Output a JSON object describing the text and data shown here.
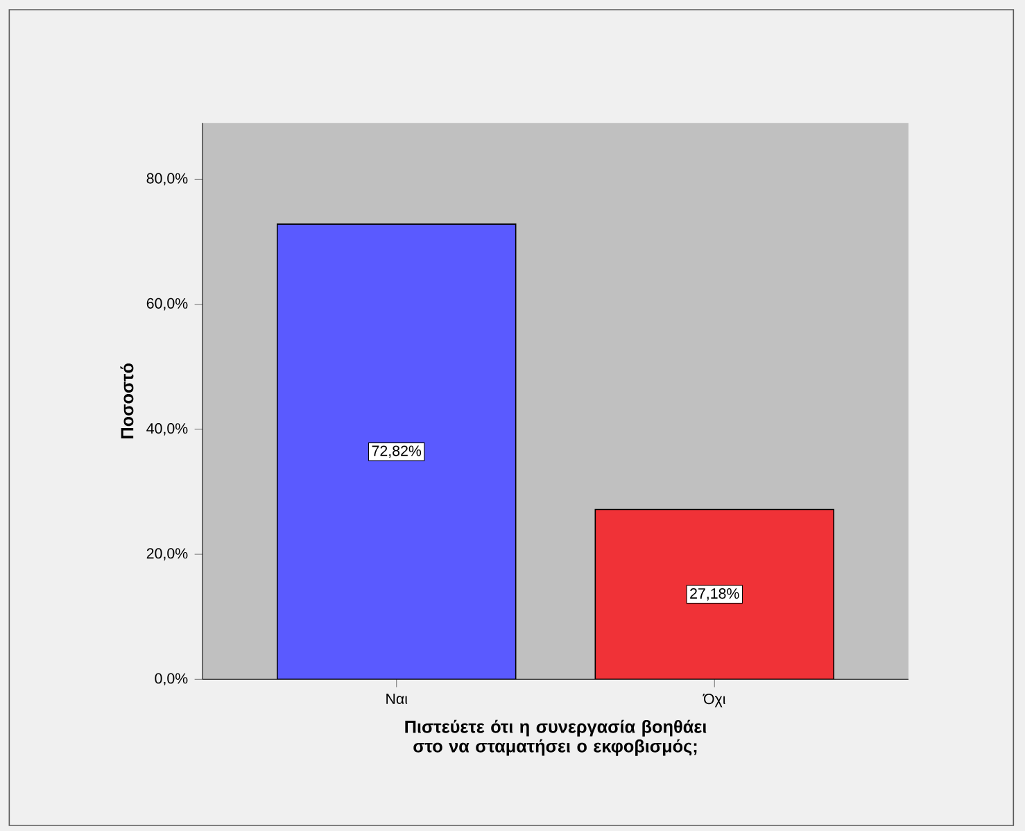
{
  "chart_data": {
    "type": "bar",
    "categories": [
      "Ναι",
      "Όχι"
    ],
    "values": [
      72.82,
      27.18
    ],
    "colors": [
      "#5a5aff",
      "#f03237"
    ],
    "value_labels": [
      "72,82%",
      "27,18%"
    ],
    "ylabel": "Ποσοστό",
    "xlabel": "Πιστεύετε ότι η συνεργασία βοηθάει στο να σταματήσει ο εκφοβισμός;",
    "ylim": [
      0,
      89
    ],
    "yticks": [
      {
        "value": 0,
        "label": "0,0%"
      },
      {
        "value": 20,
        "label": "20,0%"
      },
      {
        "value": 40,
        "label": "40,0%"
      },
      {
        "value": 60,
        "label": "60,0%"
      },
      {
        "value": 80,
        "label": "80,0%"
      }
    ],
    "grid": false
  }
}
